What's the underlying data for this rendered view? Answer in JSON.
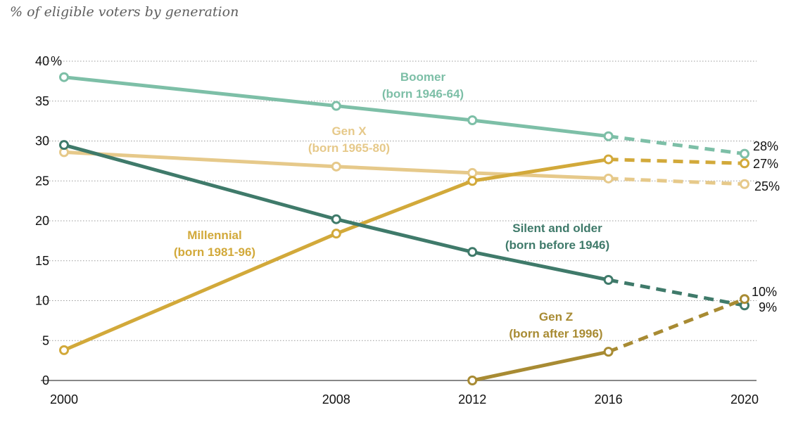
{
  "subtitle": "% of eligible voters by generation",
  "chart_data": {
    "type": "line",
    "title": "",
    "subtitle": "% of eligible voters by generation",
    "xlabel": "",
    "ylabel": "",
    "x": [
      2000,
      2008,
      2012,
      2016,
      2020
    ],
    "x_tick_labels": [
      "2000",
      "2008",
      "2012",
      "2016",
      "2020"
    ],
    "ylim": [
      0,
      40
    ],
    "y_ticks": [
      0,
      5,
      10,
      15,
      20,
      25,
      30,
      35,
      40
    ],
    "y_tick_labels": [
      "0",
      "5",
      "10",
      "15",
      "20",
      "25",
      "30",
      "35",
      "40"
    ],
    "y_top_unit": "%",
    "grid": "horizontal dotted",
    "projected_segment": "2016-2020 dashed",
    "series": [
      {
        "name": "Boomer",
        "sublabel": "(born 1946-64)",
        "color": "#7dbfa7",
        "points": [
          [
            2000,
            38.0
          ],
          [
            2008,
            34.4
          ],
          [
            2012,
            32.6
          ],
          [
            2016,
            30.6
          ],
          [
            2020,
            28.4
          ]
        ],
        "end_label": "28%"
      },
      {
        "name": "Gen X",
        "sublabel": "(born 1965-80)",
        "color": "#e6c98a",
        "points": [
          [
            2000,
            28.6
          ],
          [
            2008,
            26.8
          ],
          [
            2012,
            26.0
          ],
          [
            2016,
            25.3
          ],
          [
            2020,
            24.6
          ]
        ],
        "end_label": "25%"
      },
      {
        "name": "Millennial",
        "sublabel": "(born 1981-96)",
        "color": "#d2a93a",
        "points": [
          [
            2000,
            3.8
          ],
          [
            2008,
            18.4
          ],
          [
            2012,
            25.0
          ],
          [
            2016,
            27.7
          ],
          [
            2020,
            27.2
          ]
        ],
        "end_label": "27%"
      },
      {
        "name": "Silent and older",
        "sublabel": "(born before 1946)",
        "color": "#3f7a6a",
        "points": [
          [
            2000,
            29.5
          ],
          [
            2008,
            20.2
          ],
          [
            2012,
            16.1
          ],
          [
            2016,
            12.6
          ],
          [
            2020,
            9.4
          ]
        ],
        "end_label": "9%"
      },
      {
        "name": "Gen Z",
        "sublabel": "(born after 1996)",
        "color": "#a88b33",
        "points": [
          [
            2012,
            0.0
          ],
          [
            2016,
            3.6
          ],
          [
            2020,
            10.2
          ]
        ],
        "end_label": "10%"
      }
    ]
  }
}
